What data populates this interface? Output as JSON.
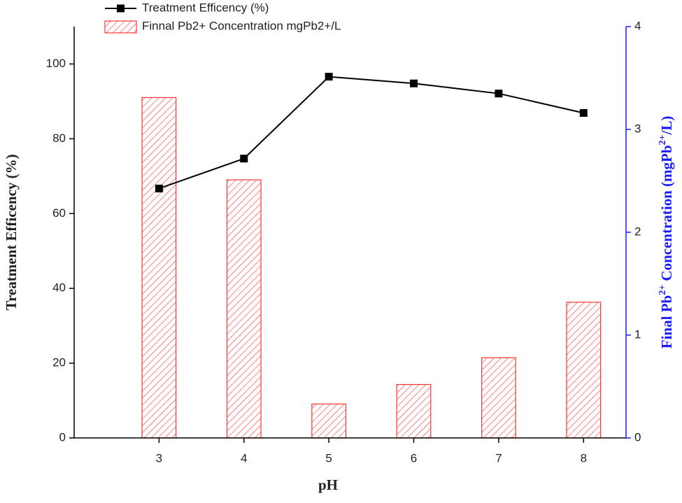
{
  "chart_data": {
    "type": "bar-line",
    "xlabel": "pH",
    "ylabel": "Treatment Efficency (%)",
    "y2label": [
      "Final Pb",
      "2+",
      " Concentration (mgPb",
      "2+",
      "/L)"
    ],
    "x": [
      3,
      4,
      5,
      6,
      7,
      8
    ],
    "xlim": [
      2,
      8.5
    ],
    "xticks": [
      3,
      4,
      5,
      6,
      7,
      8
    ],
    "ylim": [
      0,
      110
    ],
    "yticks": [
      0,
      20,
      40,
      60,
      80,
      100
    ],
    "y2lim": [
      0,
      4
    ],
    "y2ticks": [
      0,
      1,
      2,
      3,
      4
    ],
    "y2color": "#1a1aff",
    "legend": "top-left",
    "series": [
      {
        "name": "Treatment Efficency (%)",
        "type": "line",
        "color": "#000000",
        "values": [
          66.7,
          74.7,
          96.6,
          94.8,
          92.1,
          86.9
        ]
      },
      {
        "name": "Finnal Pb2+ Concentration mgPb2+/L",
        "type": "bar",
        "axis": "y2",
        "color": "#ff3333",
        "values": [
          3.31,
          2.51,
          0.33,
          0.52,
          0.78,
          1.32
        ]
      }
    ]
  }
}
